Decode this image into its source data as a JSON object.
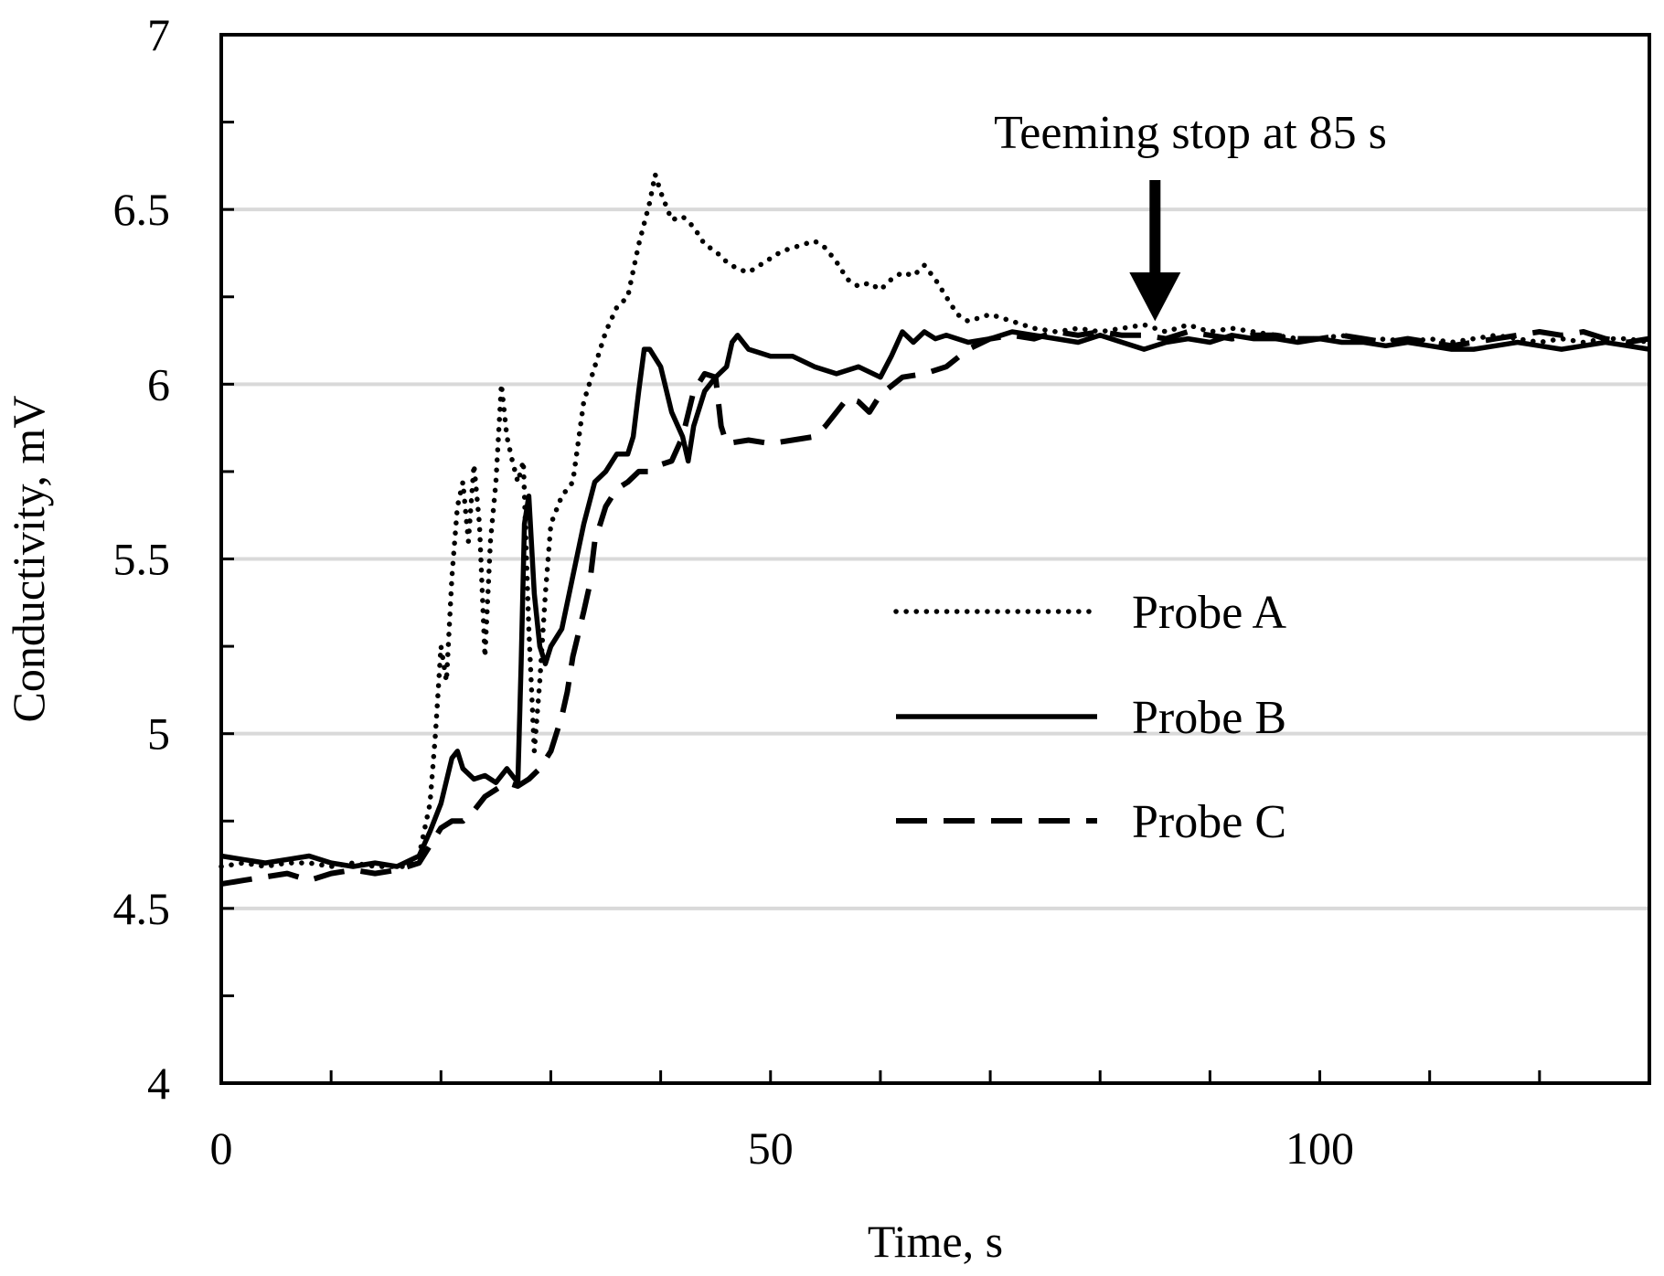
{
  "chart_data": {
    "type": "line",
    "title": "",
    "xlabel": "Time, s",
    "ylabel": "Conductivity, mV",
    "xlim": [
      0,
      130
    ],
    "ylim": [
      4,
      7
    ],
    "x_ticks": [
      0,
      50,
      100
    ],
    "x_tick_labels": [
      "0",
      "50",
      "100"
    ],
    "x_minor_step": 10,
    "y_ticks": [
      4,
      4.5,
      5,
      5.5,
      6,
      6.5,
      7
    ],
    "y_tick_labels": [
      "4",
      "4.5",
      "5",
      "5.5",
      "6",
      "6.5",
      "7"
    ],
    "y_minor_step": 0.25,
    "y_gridlines": [
      4.5,
      5,
      5.5,
      6,
      6.5
    ],
    "grid": true,
    "legend_position": "center-right",
    "annotation": {
      "text": "Teeming stop at 85 s",
      "x": 85,
      "arrow_tip_y": 6.17
    },
    "series": [
      {
        "name": "Probe A",
        "style": "dotted",
        "points": [
          [
            0,
            4.62
          ],
          [
            2,
            4.63
          ],
          [
            4,
            4.62
          ],
          [
            6,
            4.63
          ],
          [
            8,
            4.63
          ],
          [
            10,
            4.62
          ],
          [
            12,
            4.63
          ],
          [
            14,
            4.62
          ],
          [
            16,
            4.62
          ],
          [
            17,
            4.62
          ],
          [
            18,
            4.65
          ],
          [
            19,
            4.8
          ],
          [
            19.5,
            5.0
          ],
          [
            20,
            5.25
          ],
          [
            20.5,
            5.15
          ],
          [
            21,
            5.45
          ],
          [
            21.5,
            5.65
          ],
          [
            22,
            5.72
          ],
          [
            22.5,
            5.55
          ],
          [
            23,
            5.77
          ],
          [
            23.5,
            5.6
          ],
          [
            24,
            5.22
          ],
          [
            24.5,
            5.55
          ],
          [
            25,
            5.72
          ],
          [
            25.5,
            6.0
          ],
          [
            26,
            5.85
          ],
          [
            26.5,
            5.78
          ],
          [
            27,
            5.72
          ],
          [
            27.5,
            5.78
          ],
          [
            28,
            5.3
          ],
          [
            28.5,
            4.95
          ],
          [
            29,
            5.15
          ],
          [
            29.5,
            5.4
          ],
          [
            30,
            5.6
          ],
          [
            31,
            5.68
          ],
          [
            32,
            5.72
          ],
          [
            33,
            5.95
          ],
          [
            34,
            6.05
          ],
          [
            35,
            6.15
          ],
          [
            36,
            6.22
          ],
          [
            37,
            6.25
          ],
          [
            38,
            6.4
          ],
          [
            39,
            6.52
          ],
          [
            39.5,
            6.6
          ],
          [
            40,
            6.55
          ],
          [
            41,
            6.47
          ],
          [
            42,
            6.48
          ],
          [
            43,
            6.45
          ],
          [
            44,
            6.4
          ],
          [
            45,
            6.38
          ],
          [
            46,
            6.35
          ],
          [
            47,
            6.33
          ],
          [
            48,
            6.32
          ],
          [
            49,
            6.34
          ],
          [
            50,
            6.36
          ],
          [
            51,
            6.38
          ],
          [
            52,
            6.39
          ],
          [
            53,
            6.4
          ],
          [
            54,
            6.41
          ],
          [
            55,
            6.39
          ],
          [
            56,
            6.35
          ],
          [
            57,
            6.3
          ],
          [
            58,
            6.28
          ],
          [
            59,
            6.29
          ],
          [
            60,
            6.27
          ],
          [
            61,
            6.3
          ],
          [
            62,
            6.32
          ],
          [
            63,
            6.31
          ],
          [
            64,
            6.34
          ],
          [
            65,
            6.3
          ],
          [
            66,
            6.25
          ],
          [
            67,
            6.2
          ],
          [
            68,
            6.18
          ],
          [
            70,
            6.2
          ],
          [
            72,
            6.18
          ],
          [
            74,
            6.16
          ],
          [
            76,
            6.15
          ],
          [
            78,
            6.16
          ],
          [
            80,
            6.15
          ],
          [
            82,
            6.16
          ],
          [
            84,
            6.17
          ],
          [
            86,
            6.15
          ],
          [
            88,
            6.17
          ],
          [
            90,
            6.15
          ],
          [
            92,
            6.16
          ],
          [
            94,
            6.15
          ],
          [
            96,
            6.14
          ],
          [
            98,
            6.13
          ],
          [
            100,
            6.13
          ],
          [
            102,
            6.14
          ],
          [
            104,
            6.12
          ],
          [
            106,
            6.13
          ],
          [
            108,
            6.12
          ],
          [
            110,
            6.13
          ],
          [
            112,
            6.12
          ],
          [
            114,
            6.13
          ],
          [
            116,
            6.14
          ],
          [
            118,
            6.13
          ],
          [
            120,
            6.12
          ],
          [
            122,
            6.13
          ],
          [
            124,
            6.12
          ],
          [
            126,
            6.13
          ],
          [
            128,
            6.13
          ],
          [
            130,
            6.12
          ]
        ]
      },
      {
        "name": "Probe B",
        "style": "solid",
        "points": [
          [
            0,
            4.65
          ],
          [
            2,
            4.64
          ],
          [
            4,
            4.63
          ],
          [
            6,
            4.64
          ],
          [
            8,
            4.65
          ],
          [
            10,
            4.63
          ],
          [
            12,
            4.62
          ],
          [
            14,
            4.63
          ],
          [
            16,
            4.62
          ],
          [
            18,
            4.65
          ],
          [
            19,
            4.72
          ],
          [
            20,
            4.8
          ],
          [
            21,
            4.93
          ],
          [
            21.5,
            4.95
          ],
          [
            22,
            4.9
          ],
          [
            23,
            4.87
          ],
          [
            24,
            4.88
          ],
          [
            25,
            4.86
          ],
          [
            26,
            4.9
          ],
          [
            27,
            4.86
          ],
          [
            27.3,
            5.2
          ],
          [
            27.6,
            5.6
          ],
          [
            28,
            5.68
          ],
          [
            28.5,
            5.4
          ],
          [
            29,
            5.25
          ],
          [
            29.5,
            5.2
          ],
          [
            30,
            5.25
          ],
          [
            31,
            5.3
          ],
          [
            32,
            5.45
          ],
          [
            33,
            5.6
          ],
          [
            34,
            5.72
          ],
          [
            35,
            5.75
          ],
          [
            36,
            5.8
          ],
          [
            37,
            5.8
          ],
          [
            37.5,
            5.85
          ],
          [
            38,
            5.98
          ],
          [
            38.5,
            6.1
          ],
          [
            39,
            6.1
          ],
          [
            40,
            6.05
          ],
          [
            41,
            5.92
          ],
          [
            42,
            5.85
          ],
          [
            42.5,
            5.78
          ],
          [
            43,
            5.88
          ],
          [
            44,
            5.98
          ],
          [
            45,
            6.02
          ],
          [
            46,
            6.05
          ],
          [
            46.5,
            6.12
          ],
          [
            47,
            6.14
          ],
          [
            48,
            6.1
          ],
          [
            50,
            6.08
          ],
          [
            52,
            6.08
          ],
          [
            54,
            6.05
          ],
          [
            56,
            6.03
          ],
          [
            58,
            6.05
          ],
          [
            60,
            6.02
          ],
          [
            61,
            6.08
          ],
          [
            62,
            6.15
          ],
          [
            63,
            6.12
          ],
          [
            64,
            6.15
          ],
          [
            65,
            6.13
          ],
          [
            66,
            6.14
          ],
          [
            68,
            6.12
          ],
          [
            70,
            6.13
          ],
          [
            72,
            6.15
          ],
          [
            74,
            6.14
          ],
          [
            76,
            6.13
          ],
          [
            78,
            6.12
          ],
          [
            80,
            6.14
          ],
          [
            82,
            6.12
          ],
          [
            84,
            6.1
          ],
          [
            86,
            6.12
          ],
          [
            88,
            6.13
          ],
          [
            90,
            6.12
          ],
          [
            92,
            6.14
          ],
          [
            94,
            6.13
          ],
          [
            96,
            6.13
          ],
          [
            98,
            6.12
          ],
          [
            100,
            6.13
          ],
          [
            102,
            6.12
          ],
          [
            104,
            6.12
          ],
          [
            106,
            6.11
          ],
          [
            108,
            6.12
          ],
          [
            110,
            6.11
          ],
          [
            112,
            6.1
          ],
          [
            114,
            6.1
          ],
          [
            116,
            6.11
          ],
          [
            118,
            6.12
          ],
          [
            120,
            6.11
          ],
          [
            122,
            6.1
          ],
          [
            124,
            6.11
          ],
          [
            126,
            6.12
          ],
          [
            128,
            6.11
          ],
          [
            130,
            6.1
          ]
        ]
      },
      {
        "name": "Probe C",
        "style": "dashed",
        "points": [
          [
            0,
            4.57
          ],
          [
            2,
            4.58
          ],
          [
            4,
            4.59
          ],
          [
            6,
            4.6
          ],
          [
            8,
            4.58
          ],
          [
            10,
            4.6
          ],
          [
            12,
            4.61
          ],
          [
            14,
            4.6
          ],
          [
            16,
            4.61
          ],
          [
            18,
            4.63
          ],
          [
            19,
            4.68
          ],
          [
            20,
            4.73
          ],
          [
            21,
            4.75
          ],
          [
            22,
            4.75
          ],
          [
            23,
            4.78
          ],
          [
            24,
            4.82
          ],
          [
            25,
            4.84
          ],
          [
            26,
            4.86
          ],
          [
            27,
            4.85
          ],
          [
            28,
            4.87
          ],
          [
            29,
            4.9
          ],
          [
            30,
            4.95
          ],
          [
            30.5,
            5.0
          ],
          [
            31,
            5.05
          ],
          [
            31.5,
            5.12
          ],
          [
            32,
            5.22
          ],
          [
            33,
            5.35
          ],
          [
            33.5,
            5.42
          ],
          [
            34,
            5.55
          ],
          [
            34.5,
            5.6
          ],
          [
            35,
            5.65
          ],
          [
            36,
            5.7
          ],
          [
            37,
            5.72
          ],
          [
            38,
            5.75
          ],
          [
            39,
            5.75
          ],
          [
            40,
            5.77
          ],
          [
            41,
            5.78
          ],
          [
            42,
            5.85
          ],
          [
            43,
            5.98
          ],
          [
            44,
            6.03
          ],
          [
            45,
            6.02
          ],
          [
            45.5,
            5.88
          ],
          [
            46,
            5.83
          ],
          [
            48,
            5.84
          ],
          [
            50,
            5.83
          ],
          [
            52,
            5.84
          ],
          [
            54,
            5.85
          ],
          [
            55,
            5.88
          ],
          [
            56,
            5.92
          ],
          [
            57,
            5.96
          ],
          [
            58,
            5.95
          ],
          [
            59,
            5.92
          ],
          [
            60,
            5.97
          ],
          [
            62,
            6.02
          ],
          [
            64,
            6.03
          ],
          [
            66,
            6.05
          ],
          [
            68,
            6.1
          ],
          [
            70,
            6.13
          ],
          [
            72,
            6.14
          ],
          [
            74,
            6.13
          ],
          [
            76,
            6.15
          ],
          [
            78,
            6.14
          ],
          [
            80,
            6.15
          ],
          [
            82,
            6.14
          ],
          [
            84,
            6.14
          ],
          [
            86,
            6.13
          ],
          [
            88,
            6.15
          ],
          [
            90,
            6.14
          ],
          [
            92,
            6.13
          ],
          [
            94,
            6.14
          ],
          [
            96,
            6.14
          ],
          [
            98,
            6.13
          ],
          [
            100,
            6.13
          ],
          [
            102,
            6.14
          ],
          [
            104,
            6.13
          ],
          [
            106,
            6.12
          ],
          [
            108,
            6.13
          ],
          [
            110,
            6.12
          ],
          [
            112,
            6.11
          ],
          [
            114,
            6.12
          ],
          [
            116,
            6.13
          ],
          [
            118,
            6.14
          ],
          [
            120,
            6.15
          ],
          [
            122,
            6.14
          ],
          [
            124,
            6.15
          ],
          [
            126,
            6.13
          ],
          [
            128,
            6.12
          ],
          [
            130,
            6.13
          ]
        ]
      }
    ]
  }
}
